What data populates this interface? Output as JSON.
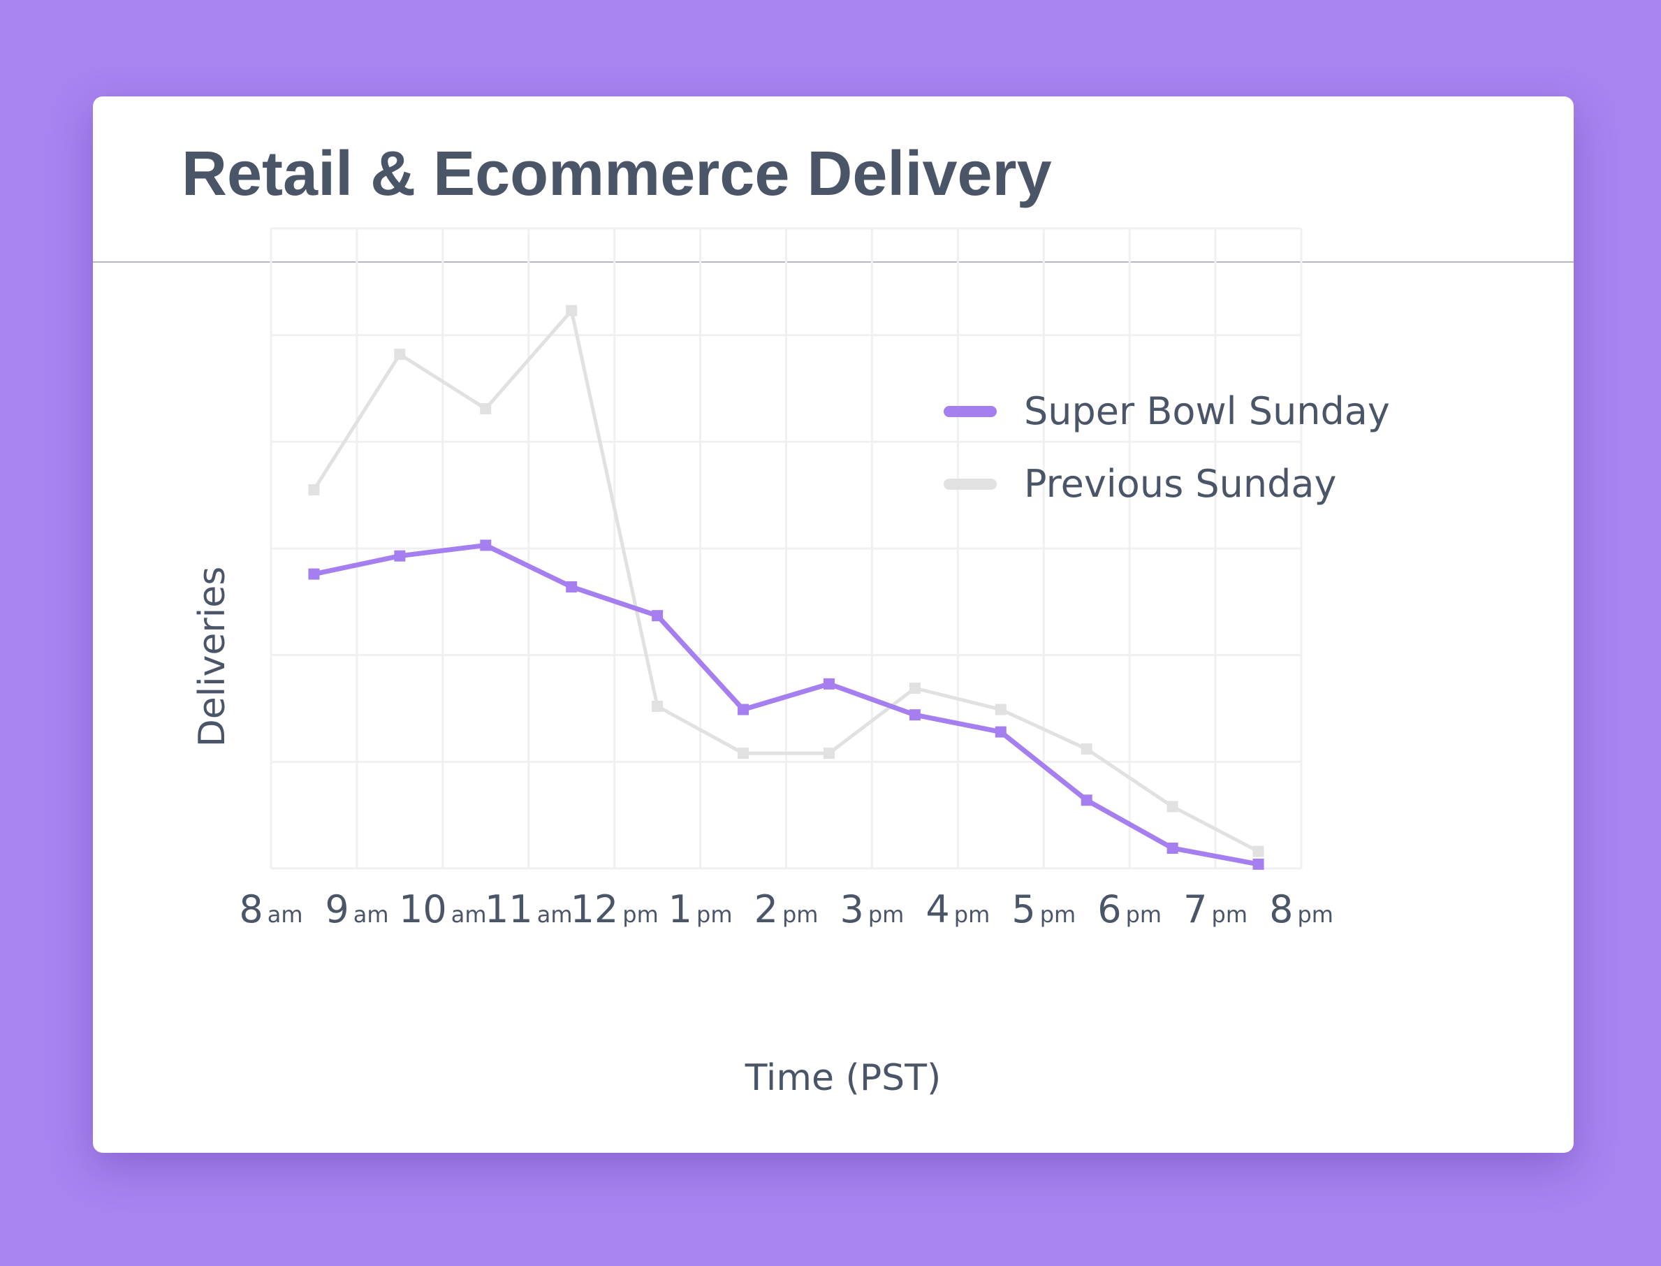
{
  "title": "Retail & Ecommerce Delivery",
  "colors": {
    "background": "#a784f0",
    "card": "#ffffff",
    "text": "#4a5568",
    "super_bowl": "#a57ef0",
    "previous": "#e1e1e1",
    "grid": "#f0f0f2"
  },
  "chart_data": {
    "type": "line",
    "title": "Retail & Ecommerce Delivery",
    "xlabel": "Time (PST)",
    "ylabel": "Deliveries",
    "x_ticks": [
      {
        "num": "8",
        "unit": "am"
      },
      {
        "num": "9",
        "unit": "am"
      },
      {
        "num": "10",
        "unit": "am"
      },
      {
        "num": "11",
        "unit": "am"
      },
      {
        "num": "12",
        "unit": "pm"
      },
      {
        "num": "1",
        "unit": "pm"
      },
      {
        "num": "2",
        "unit": "pm"
      },
      {
        "num": "3",
        "unit": "pm"
      },
      {
        "num": "4",
        "unit": "pm"
      },
      {
        "num": "5",
        "unit": "pm"
      },
      {
        "num": "6",
        "unit": "pm"
      },
      {
        "num": "7",
        "unit": "pm"
      },
      {
        "num": "8",
        "unit": "pm"
      }
    ],
    "xlim": [
      8,
      20
    ],
    "ylim": [
      0,
      6
    ],
    "y_gridlines": 6,
    "legend_position": "top-right",
    "series": [
      {
        "name": "Super Bowl Sunday",
        "color": "#a57ef0",
        "x": [
          8.5,
          9.5,
          10.5,
          11.5,
          12.5,
          13.5,
          14.5,
          15.5,
          16.5,
          17.5,
          18.5,
          19.5
        ],
        "values": [
          2.76,
          2.93,
          3.03,
          2.64,
          2.37,
          1.49,
          1.73,
          1.44,
          1.28,
          0.64,
          0.19,
          0.04
        ]
      },
      {
        "name": "Previous Sunday",
        "color": "#e1e1e1",
        "x": [
          8.5,
          9.5,
          10.5,
          11.5,
          12.5,
          13.5,
          14.5,
          15.5,
          16.5,
          17.5,
          18.5,
          19.5
        ],
        "values": [
          3.55,
          4.82,
          4.31,
          5.23,
          1.52,
          1.08,
          1.08,
          1.69,
          1.49,
          1.12,
          0.58,
          0.16
        ]
      }
    ]
  }
}
